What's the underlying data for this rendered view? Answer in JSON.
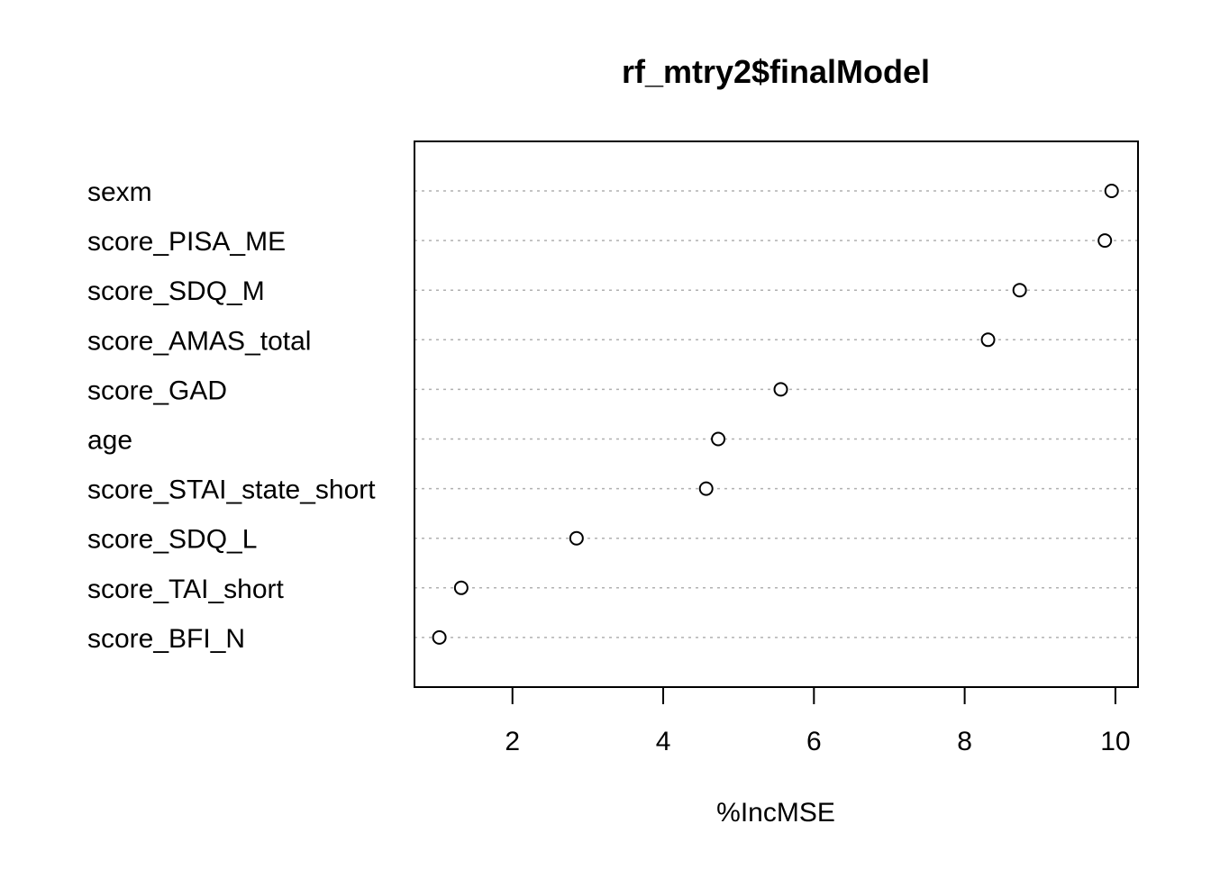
{
  "chart_data": {
    "type": "scatter",
    "title": "rf_mtry2$finalModel",
    "xlabel": "%IncMSE",
    "ylabel": "",
    "xlim": [
      0.7,
      10.3
    ],
    "xticks": [
      2,
      4,
      6,
      8,
      10
    ],
    "grid": "horizontal dotted per variable",
    "legend": "none",
    "categories": [
      "sexm",
      "score_PISA_ME",
      "score_SDQ_M",
      "score_AMAS_total",
      "score_GAD",
      "age",
      "score_STAI_state_short",
      "score_SDQ_L",
      "score_TAI_short",
      "score_BFI_N"
    ],
    "values": [
      9.95,
      9.86,
      8.73,
      8.31,
      5.56,
      4.73,
      4.57,
      2.85,
      1.32,
      1.03
    ],
    "colors": {
      "point_stroke": "#000000",
      "grid": "#b0b0b0",
      "axis": "#000000"
    }
  }
}
